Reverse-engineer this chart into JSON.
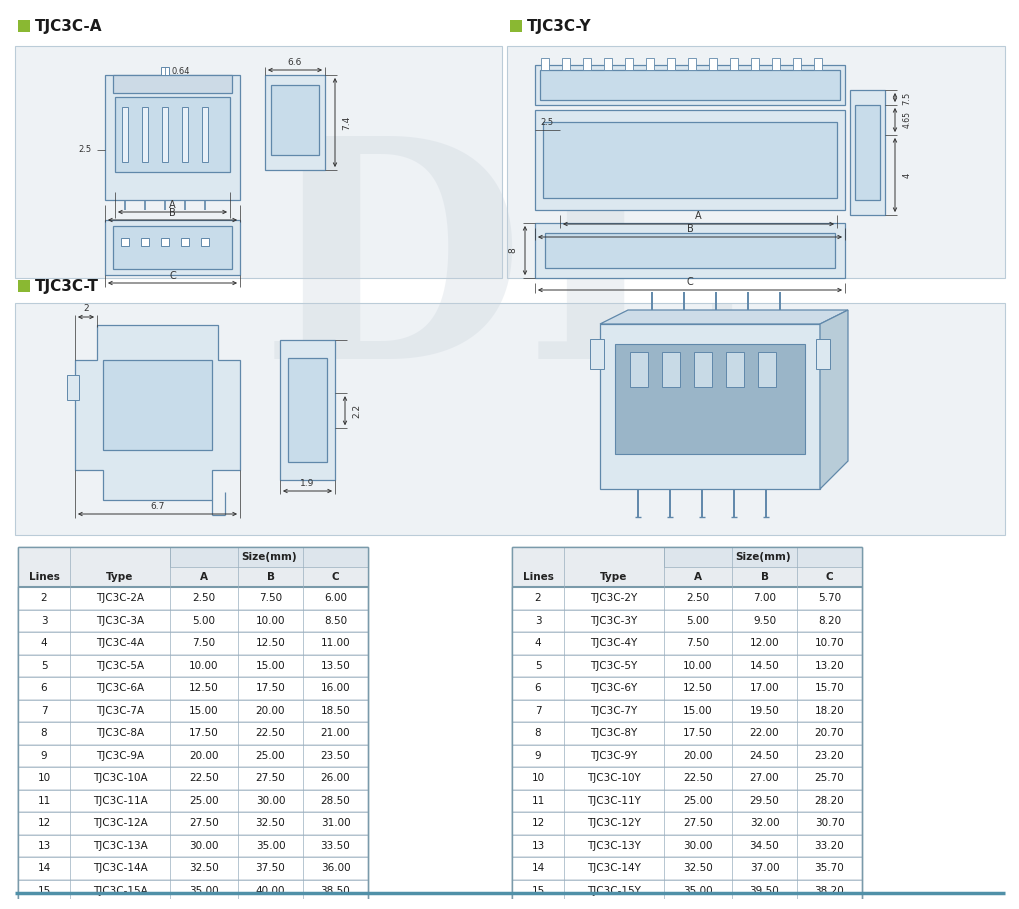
{
  "title_A": "TJC3C-A",
  "title_Y": "TJC3C-Y",
  "title_T": "TJC3C-T",
  "accent_color": "#8ab832",
  "bg_section": "#eef2f5",
  "bg_main": "#ffffff",
  "line_color": "#6088aa",
  "dim_color": "#333333",
  "table_line_color": "#aabbcc",
  "table_A": {
    "headers": [
      "Lines",
      "Type",
      "A",
      "B",
      "C"
    ],
    "col_header": "Size(mm)",
    "rows": [
      [
        "2",
        "TJC3C-2A",
        "2.50",
        "7.50",
        "6.00"
      ],
      [
        "3",
        "TJC3C-3A",
        "5.00",
        "10.00",
        "8.50"
      ],
      [
        "4",
        "TJC3C-4A",
        "7.50",
        "12.50",
        "11.00"
      ],
      [
        "5",
        "TJC3C-5A",
        "10.00",
        "15.00",
        "13.50"
      ],
      [
        "6",
        "TJC3C-6A",
        "12.50",
        "17.50",
        "16.00"
      ],
      [
        "7",
        "TJC3C-7A",
        "15.00",
        "20.00",
        "18.50"
      ],
      [
        "8",
        "TJC3C-8A",
        "17.50",
        "22.50",
        "21.00"
      ],
      [
        "9",
        "TJC3C-9A",
        "20.00",
        "25.00",
        "23.50"
      ],
      [
        "10",
        "TJC3C-10A",
        "22.50",
        "27.50",
        "26.00"
      ],
      [
        "11",
        "TJC3C-11A",
        "25.00",
        "30.00",
        "28.50"
      ],
      [
        "12",
        "TJC3C-12A",
        "27.50",
        "32.50",
        "31.00"
      ],
      [
        "13",
        "TJC3C-13A",
        "30.00",
        "35.00",
        "33.50"
      ],
      [
        "14",
        "TJC3C-14A",
        "32.50",
        "37.50",
        "36.00"
      ],
      [
        "15",
        "TJC3C-15A",
        "35.00",
        "40.00",
        "38.50"
      ]
    ]
  },
  "table_Y": {
    "headers": [
      "Lines",
      "Type",
      "A",
      "B",
      "C"
    ],
    "col_header": "Size(mm)",
    "rows": [
      [
        "2",
        "TJC3C-2Y",
        "2.50",
        "7.00",
        "5.70"
      ],
      [
        "3",
        "TJC3C-3Y",
        "5.00",
        "9.50",
        "8.20"
      ],
      [
        "4",
        "TJC3C-4Y",
        "7.50",
        "12.00",
        "10.70"
      ],
      [
        "5",
        "TJC3C-5Y",
        "10.00",
        "14.50",
        "13.20"
      ],
      [
        "6",
        "TJC3C-6Y",
        "12.50",
        "17.00",
        "15.70"
      ],
      [
        "7",
        "TJC3C-7Y",
        "15.00",
        "19.50",
        "18.20"
      ],
      [
        "8",
        "TJC3C-8Y",
        "17.50",
        "22.00",
        "20.70"
      ],
      [
        "9",
        "TJC3C-9Y",
        "20.00",
        "24.50",
        "23.20"
      ],
      [
        "10",
        "TJC3C-10Y",
        "22.50",
        "27.00",
        "25.70"
      ],
      [
        "11",
        "TJC3C-11Y",
        "25.00",
        "29.50",
        "28.20"
      ],
      [
        "12",
        "TJC3C-12Y",
        "27.50",
        "32.00",
        "30.70"
      ],
      [
        "13",
        "TJC3C-13Y",
        "30.00",
        "34.50",
        "33.20"
      ],
      [
        "14",
        "TJC3C-14Y",
        "32.50",
        "37.00",
        "35.70"
      ],
      [
        "15",
        "TJC3C-15Y",
        "35.00",
        "39.50",
        "38.20"
      ]
    ]
  },
  "fig_w": 10.0,
  "fig_h": 8.89,
  "dpi": 100
}
